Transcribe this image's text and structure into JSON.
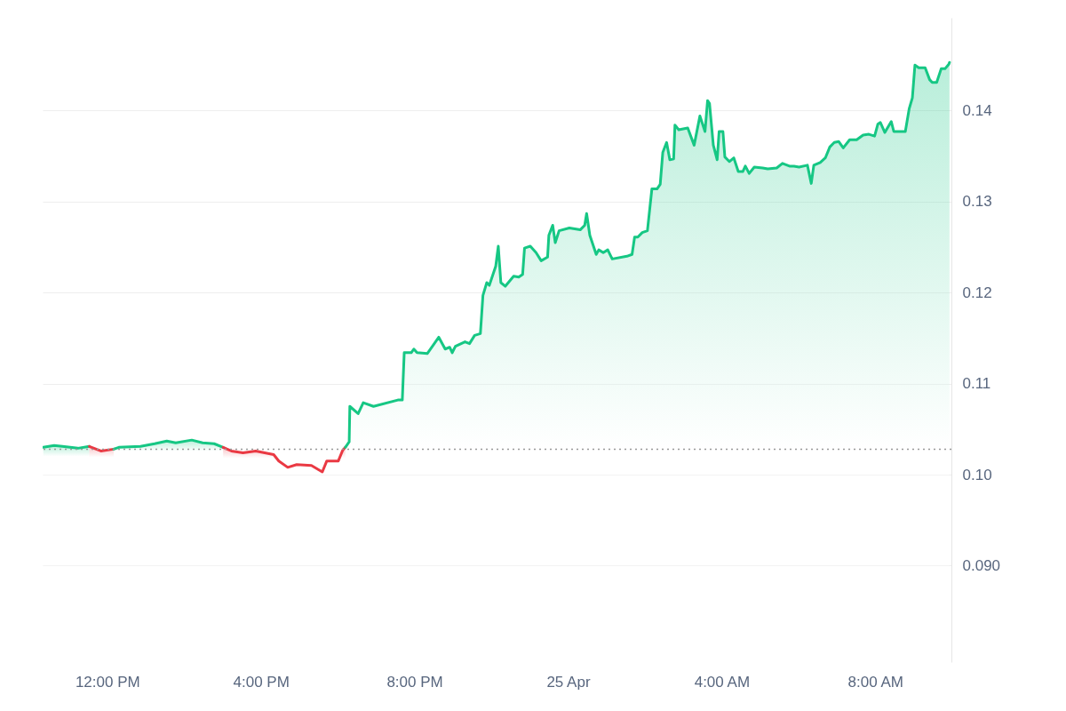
{
  "chart_data": {
    "type": "area",
    "xlim": [
      "--04-24T10:19",
      "--04-25T09:59"
    ],
    "ylim": [
      0.0794,
      0.1502
    ],
    "xticks": [
      {
        "value": "--04-24T12:00",
        "label": "12:00 PM"
      },
      {
        "value": "--04-24T16:00",
        "label": "4:00 PM"
      },
      {
        "value": "--04-24T20:00",
        "label": "8:00 PM"
      },
      {
        "value": "--04-25",
        "label": "25 Apr"
      },
      {
        "value": "--04-25T04:00",
        "label": "4:00 AM"
      },
      {
        "value": "--04-25T08:00",
        "label": "8:00 AM"
      }
    ],
    "yticks": [
      {
        "value": 0.09,
        "label": "0.090"
      },
      {
        "value": 0.1,
        "label": "0.10"
      },
      0.11,
      0.12,
      0.13,
      0.14
    ],
    "grid": "y",
    "marker": "none",
    "ref_lines": [
      {
        "axis": "y",
        "value": 0.1028,
        "color": "#999999",
        "line_style": "dotted"
      }
    ],
    "series": [
      {
        "color": "#16c784",
        "x": [
          "--04-24T10:20",
          "--04-24T10:37",
          "--04-24T10:50",
          "--04-24T11:14",
          "--04-24T11:32"
        ],
        "values": [
          0.103,
          0.1032,
          0.1031,
          0.1029,
          0.1031
        ]
      },
      {
        "color": "#ea3943",
        "x": [
          "--04-24T11:32",
          "--04-24T11:50",
          "--04-24T12:10"
        ],
        "values": [
          0.1031,
          0.1026,
          0.1028
        ]
      },
      {
        "color": "#16c784",
        "x": [
          "--04-24T12:10",
          "--04-24T12:18",
          "--04-24T12:52",
          "--04-24T13:14",
          "--04-24T13:33",
          "--04-24T13:47",
          "--04-24T14:12",
          "--04-24T14:29",
          "--04-24T14:47",
          "--04-24T15:01"
        ],
        "values": [
          0.1028,
          0.103,
          0.1031,
          0.1034,
          0.1037,
          0.1035,
          0.1038,
          0.1035,
          0.1034,
          0.103
        ]
      },
      {
        "color": "#ea3943",
        "x": [
          "--04-24T15:01",
          "--04-24T15:14",
          "--04-24T15:32",
          "--04-24T15:52",
          "--04-24T16:06",
          "--04-24T16:20",
          "--04-24T16:28",
          "--04-24T16:42",
          "--04-24T16:56",
          "--04-24T17:19",
          "--04-24T17:36",
          "--04-24T17:43",
          "--04-24T18:01",
          "--04-24T18:08",
          "--04-24T18:12"
        ],
        "values": [
          0.103,
          0.1026,
          0.1024,
          0.1026,
          0.1024,
          0.1022,
          0.1015,
          0.1008,
          0.1011,
          0.101,
          0.1003,
          0.1015,
          0.1015,
          0.1027,
          0.103
        ]
      },
      {
        "color": "#16c784",
        "x": [
          "--04-24T18:12",
          "--04-24T18:18",
          "--04-24T18:19",
          "--04-24T18:32",
          "--04-24T18:40",
          "--04-24T18:56",
          "--04-24T19:34",
          "--04-24T19:41",
          "--04-24T19:44",
          "--04-24T19:55",
          "--04-24T19:59",
          "--04-24T20:04",
          "--04-24T20:20",
          "--04-24T20:30",
          "--04-24T20:38",
          "--04-24T20:48",
          "--04-24T20:55",
          "--04-24T20:59",
          "--04-24T21:04",
          "--04-24T21:19",
          "--04-24T21:26",
          "--04-24T21:34",
          "--04-24T21:43",
          "--04-24T21:47",
          "--04-24T21:53",
          "--04-24T21:57",
          "--04-24T22:07",
          "--04-24T22:11",
          "--04-24T22:15",
          "--04-24T22:22",
          "--04-24T22:35",
          "--04-24T22:43",
          "--04-24T22:49",
          "--04-24T22:52",
          "--04-24T23:01",
          "--04-24T23:10",
          "--04-24T23:18",
          "--04-24T23:28",
          "--04-24T23:30",
          "--04-24T23:36",
          "--04-24T23:40",
          "--04-24T23:46",
          "--04-25T00:02",
          "--04-25T00:19",
          "--04-25T00:26",
          "--04-25T00:29",
          "--04-25T00:34",
          "--04-25T00:44",
          "--04-25T00:48",
          "--04-25T00:55",
          "--04-25T01:02",
          "--04-25T01:09",
          "--04-25T01:32",
          "--04-25T01:40",
          "--04-25T01:44",
          "--04-25T01:49",
          "--04-25T01:56",
          "--04-25T02:04",
          "--04-25T02:11",
          "--04-25T02:19",
          "--04-25T02:24",
          "--04-25T02:28",
          "--04-25T02:34",
          "--04-25T02:39",
          "--04-25T02:45",
          "--04-25T02:47",
          "--04-25T02:53",
          "--04-25T03:07",
          "--04-25T03:17",
          "--04-25T03:26",
          "--04-25T03:34",
          "--04-25T03:38",
          "--04-25T03:41",
          "--04-25T03:47",
          "--04-25T03:53",
          "--04-25T03:56",
          "--04-25T04:02",
          "--04-25T04:05",
          "--04-25T04:12",
          "--04-25T04:19",
          "--04-25T04:26",
          "--04-25T04:33",
          "--04-25T04:37",
          "--04-25T04:43",
          "--04-25T04:51",
          "--04-25T05:04",
          "--04-25T05:12",
          "--04-25T05:26",
          "--04-25T05:35",
          "--04-25T05:46",
          "--04-25T05:53",
          "--04-25T06:01",
          "--04-25T06:14",
          "--04-25T06:20",
          "--04-25T06:24",
          "--04-25T06:34",
          "--04-25T06:42",
          "--04-25T06:49",
          "--04-25T06:56",
          "--04-25T07:03",
          "--04-25T07:10",
          "--04-25T07:20",
          "--04-25T07:31",
          "--04-25T07:41",
          "--04-25T07:50",
          "--04-25T07:59",
          "--04-25T08:04",
          "--04-25T08:08",
          "--04-25T08:15",
          "--04-25T08:25",
          "--04-25T08:29",
          "--04-25T08:47",
          "--04-25T08:53",
          "--04-25T08:58",
          "--04-25T09:02",
          "--04-25T09:08",
          "--04-25T09:18",
          "--04-25T09:25",
          "--04-25T09:29",
          "--04-25T09:36",
          "--04-25T09:43",
          "--04-25T09:49",
          "--04-25T09:55",
          "--04-25T09:56"
        ],
        "values": [
          0.103,
          0.1036,
          0.1075,
          0.1067,
          0.1079,
          0.1075,
          0.1082,
          0.1082,
          0.1134,
          0.1134,
          0.1138,
          0.1134,
          0.1133,
          0.1143,
          0.1151,
          0.1138,
          0.114,
          0.1134,
          0.1141,
          0.1146,
          0.1144,
          0.1153,
          0.1155,
          0.1197,
          0.1211,
          0.1208,
          0.1229,
          0.1251,
          0.1211,
          0.1207,
          0.1218,
          0.1217,
          0.122,
          0.1249,
          0.1251,
          0.1244,
          0.1235,
          0.1239,
          0.1263,
          0.1274,
          0.1255,
          0.1268,
          0.1271,
          0.1269,
          0.1274,
          0.1287,
          0.1263,
          0.1242,
          0.1247,
          0.1244,
          0.1247,
          0.1237,
          0.124,
          0.1242,
          0.1261,
          0.1261,
          0.1266,
          0.1268,
          0.1314,
          0.1314,
          0.1319,
          0.1354,
          0.1365,
          0.1346,
          0.1347,
          0.1384,
          0.1379,
          0.1381,
          0.1362,
          0.1394,
          0.1377,
          0.1411,
          0.1408,
          0.1362,
          0.1346,
          0.1377,
          0.1377,
          0.1349,
          0.1344,
          0.1348,
          0.1333,
          0.1333,
          0.1339,
          0.1331,
          0.1338,
          0.1337,
          0.1336,
          0.1337,
          0.1342,
          0.1339,
          0.1339,
          0.1338,
          0.134,
          0.132,
          0.134,
          0.1343,
          0.1348,
          0.136,
          0.1365,
          0.1366,
          0.1359,
          0.1368,
          0.1368,
          0.1373,
          0.1374,
          0.1372,
          0.1385,
          0.1387,
          0.1376,
          0.1388,
          0.1377,
          0.1377,
          0.1402,
          0.1414,
          0.145,
          0.1447,
          0.1447,
          0.1434,
          0.1431,
          0.1431,
          0.1446,
          0.1446,
          0.1451,
          0.1453
        ]
      }
    ]
  }
}
